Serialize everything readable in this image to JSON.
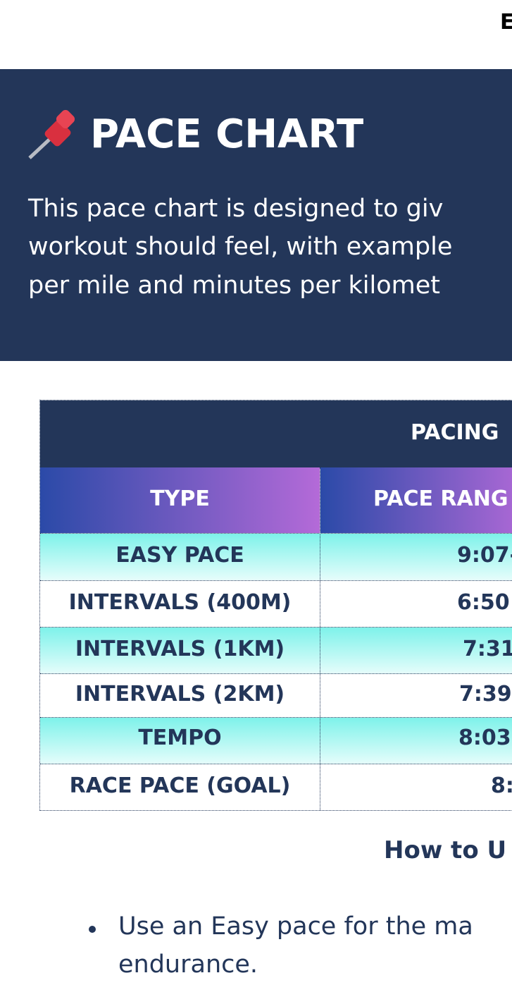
{
  "topbar": {
    "text": "E"
  },
  "hero": {
    "icon": "pushpin-icon",
    "title": "PACE CHART",
    "paragraph": [
      "This pace chart is designed to giv",
      "workout should feel, with example",
      "per mile and minutes per kilomet"
    ]
  },
  "table": {
    "title": "PACING",
    "headers": [
      "TYPE",
      "PACE RANG"
    ],
    "rows": [
      {
        "type": "EASY PACE",
        "pace": "9:07-"
      },
      {
        "type": "INTERVALS (400M)",
        "pace": "6:50"
      },
      {
        "type": "INTERVALS (1KM)",
        "pace": "7:31-"
      },
      {
        "type": "INTERVALS (2KM)",
        "pace": "7:39-"
      },
      {
        "type": "TEMPO",
        "pace": "8:03"
      },
      {
        "type": "RACE PACE (GOAL)",
        "pace": "8:"
      }
    ]
  },
  "howto": {
    "heading": "How to U",
    "bullets": [
      [
        "Use an Easy pace for the ma",
        "endurance."
      ]
    ]
  },
  "colors": {
    "navy": "#233659",
    "teal": "#7ef2ea",
    "gradient_start": "#2b4aa8",
    "gradient_end": "#b46ad8"
  }
}
